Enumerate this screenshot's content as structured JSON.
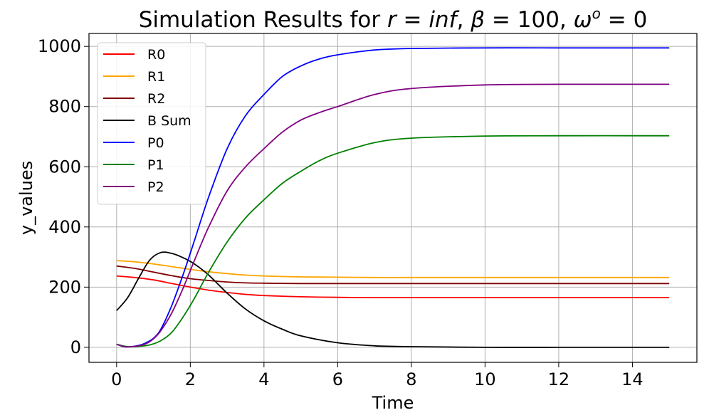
{
  "chart_data": {
    "type": "line",
    "title": "Simulation Results for r = inf, β = 100, ω° = 0",
    "title_parts": {
      "prefix": "Simulation Results for ",
      "r": "r",
      "r_val": "inf",
      "beta": "β",
      "beta_val": "100",
      "omega": "ω",
      "omega_sup": "o",
      "omega_val": "0"
    },
    "xlabel": "Time",
    "ylabel": "y_values",
    "xlim": [
      -0.75,
      15.75
    ],
    "ylim": [
      -50,
      1043
    ],
    "xticks": [
      0,
      2,
      4,
      6,
      8,
      10,
      12,
      14
    ],
    "yticks": [
      0,
      200,
      400,
      600,
      800,
      1000
    ],
    "grid": true,
    "legend_position": "top-left",
    "series": [
      {
        "name": "R0",
        "color": "#ff0000",
        "x": [
          0,
          0.5,
          1,
          1.5,
          2,
          2.5,
          3,
          3.5,
          4,
          5,
          6,
          7,
          8,
          10,
          12,
          15
        ],
        "y": [
          237,
          232,
          224,
          212,
          200,
          190,
          182,
          176,
          172,
          168,
          166,
          165,
          165,
          165,
          165,
          165
        ]
      },
      {
        "name": "R1",
        "color": "#ffa500",
        "x": [
          0,
          0.5,
          1,
          1.5,
          2,
          2.5,
          3,
          3.5,
          4,
          5,
          6,
          7,
          8,
          10,
          12,
          15
        ],
        "y": [
          288,
          284,
          277,
          268,
          259,
          251,
          245,
          240,
          237,
          234,
          233,
          232,
          232,
          232,
          232,
          232
        ]
      },
      {
        "name": "R2",
        "color": "#800000",
        "x": [
          0,
          0.5,
          1,
          1.5,
          2,
          2.5,
          3,
          3.5,
          4,
          5,
          6,
          7,
          8,
          10,
          12,
          15
        ],
        "y": [
          270,
          262,
          250,
          238,
          228,
          222,
          217,
          214,
          213,
          212,
          212,
          212,
          212,
          212,
          212,
          212
        ]
      },
      {
        "name": "B Sum",
        "color": "#000000",
        "x": [
          0,
          0.3,
          0.6,
          0.9,
          1.2,
          1.5,
          1.8,
          2.1,
          2.5,
          3,
          3.5,
          4,
          4.5,
          5,
          6,
          7,
          8,
          10,
          12,
          15
        ],
        "y": [
          122,
          165,
          230,
          290,
          315,
          312,
          298,
          278,
          240,
          180,
          127,
          88,
          60,
          38,
          15,
          5,
          2,
          0,
          0,
          0
        ]
      },
      {
        "name": "P0",
        "color": "#0000ff",
        "x": [
          0,
          0.2,
          0.4,
          0.6,
          0.8,
          1,
          1.2,
          1.5,
          1.8,
          2.1,
          2.5,
          3,
          3.5,
          4,
          4.5,
          5,
          5.5,
          6,
          7,
          8,
          10,
          12,
          15
        ],
        "y": [
          10,
          2,
          2,
          6,
          15,
          30,
          60,
          140,
          240,
          350,
          500,
          660,
          770,
          840,
          900,
          935,
          958,
          972,
          988,
          993,
          995,
          995,
          995
        ]
      },
      {
        "name": "P1",
        "color": "#008000",
        "x": [
          0,
          0.3,
          0.6,
          0.9,
          1.2,
          1.5,
          1.8,
          2.1,
          2.5,
          3,
          3.5,
          4,
          4.5,
          5,
          5.5,
          6,
          7,
          8,
          10,
          12,
          15
        ],
        "y": [
          10,
          2,
          3,
          8,
          22,
          50,
          100,
          160,
          250,
          350,
          430,
          490,
          545,
          585,
          620,
          645,
          680,
          695,
          702,
          703,
          703
        ]
      },
      {
        "name": "P2",
        "color": "#800080",
        "x": [
          0,
          0.2,
          0.4,
          0.6,
          0.8,
          1,
          1.2,
          1.5,
          1.8,
          2.1,
          2.5,
          3,
          3.5,
          4,
          4.5,
          5,
          5.5,
          6,
          7,
          8,
          10,
          12,
          15
        ],
        "y": [
          10,
          2,
          2,
          5,
          12,
          28,
          55,
          115,
          195,
          285,
          400,
          520,
          600,
          660,
          715,
          755,
          780,
          800,
          840,
          860,
          872,
          874,
          874
        ]
      }
    ]
  }
}
